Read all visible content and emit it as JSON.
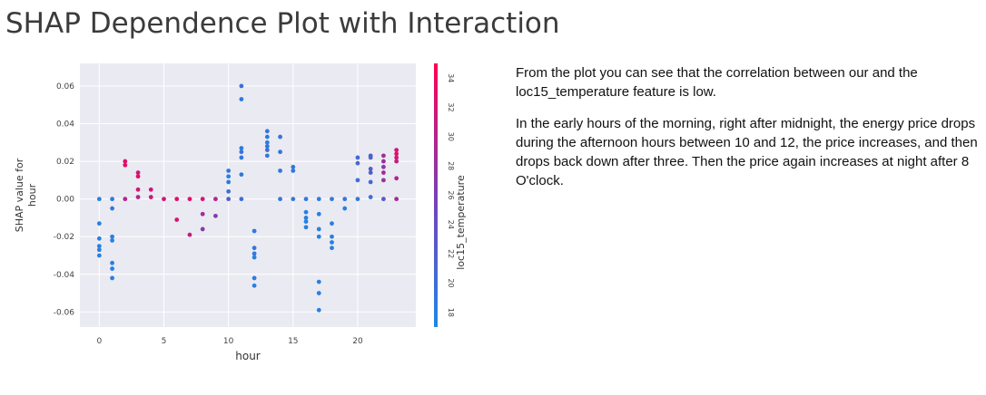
{
  "title": "SHAP Dependence Plot with Interaction",
  "notes": {
    "paragraph_1": "From the plot you can see that the correlation between our and the loc15_temperature feature is low.",
    "paragraph_2": "In the early hours of the morning, right after midnight, the energy price drops during the afternoon hours between 10 and 12, the price increases, and then drops back down after three. Then the price again increases at night after 8 O'clock."
  },
  "chart_data": {
    "type": "scatter",
    "xlabel": "hour",
    "ylabel": "SHAP value for\nhour",
    "xlim": [
      -1.5,
      24.5
    ],
    "ylim": [
      -0.068,
      0.072
    ],
    "xticks": [
      0,
      5,
      10,
      15,
      20
    ],
    "yticks": [
      -0.06,
      -0.04,
      -0.02,
      0.0,
      0.02,
      0.04,
      0.06
    ],
    "ytick_labels": [
      "-0.06",
      "-0.04",
      "-0.02",
      "0.00",
      "0.02",
      "0.04",
      "0.06"
    ],
    "grid": true,
    "colorbar": {
      "label": "loc15_temperature",
      "range": [
        17,
        35
      ],
      "ticks": [
        18,
        20,
        22,
        24,
        26,
        28,
        30,
        32,
        34
      ],
      "low_color": "#1e88e5",
      "high_color": "#ff0052"
    },
    "points": [
      {
        "x": 0,
        "y": 0.0,
        "c": 18
      },
      {
        "x": 0,
        "y": -0.013,
        "c": 18
      },
      {
        "x": 0,
        "y": -0.021,
        "c": 18
      },
      {
        "x": 0,
        "y": -0.025,
        "c": 18
      },
      {
        "x": 0,
        "y": -0.027,
        "c": 18
      },
      {
        "x": 0,
        "y": -0.03,
        "c": 18
      },
      {
        "x": 1,
        "y": 0.0,
        "c": 19
      },
      {
        "x": 1,
        "y": -0.005,
        "c": 19
      },
      {
        "x": 1,
        "y": -0.02,
        "c": 18
      },
      {
        "x": 1,
        "y": -0.022,
        "c": 18
      },
      {
        "x": 1,
        "y": -0.034,
        "c": 18
      },
      {
        "x": 1,
        "y": -0.037,
        "c": 18
      },
      {
        "x": 1,
        "y": -0.042,
        "c": 18
      },
      {
        "x": 2,
        "y": 0.0,
        "c": 30
      },
      {
        "x": 2,
        "y": 0.018,
        "c": 33
      },
      {
        "x": 2,
        "y": 0.02,
        "c": 33
      },
      {
        "x": 3,
        "y": 0.001,
        "c": 30
      },
      {
        "x": 3,
        "y": 0.005,
        "c": 32
      },
      {
        "x": 3,
        "y": 0.012,
        "c": 33
      },
      {
        "x": 3,
        "y": 0.014,
        "c": 32
      },
      {
        "x": 4,
        "y": 0.001,
        "c": 31
      },
      {
        "x": 4,
        "y": 0.005,
        "c": 32
      },
      {
        "x": 5,
        "y": 0.0,
        "c": 32
      },
      {
        "x": 6,
        "y": 0.0,
        "c": 33
      },
      {
        "x": 6,
        "y": -0.011,
        "c": 32
      },
      {
        "x": 7,
        "y": 0.0,
        "c": 33
      },
      {
        "x": 7,
        "y": -0.019,
        "c": 31
      },
      {
        "x": 8,
        "y": 0.0,
        "c": 32
      },
      {
        "x": 8,
        "y": -0.008,
        "c": 29
      },
      {
        "x": 8,
        "y": -0.016,
        "c": 27
      },
      {
        "x": 9,
        "y": 0.0,
        "c": 30
      },
      {
        "x": 9,
        "y": -0.009,
        "c": 27
      },
      {
        "x": 10,
        "y": 0.0,
        "c": 22
      },
      {
        "x": 10,
        "y": 0.004,
        "c": 20
      },
      {
        "x": 10,
        "y": 0.009,
        "c": 19
      },
      {
        "x": 10,
        "y": 0.012,
        "c": 18
      },
      {
        "x": 10,
        "y": 0.015,
        "c": 19
      },
      {
        "x": 11,
        "y": 0.06,
        "c": 20
      },
      {
        "x": 11,
        "y": 0.053,
        "c": 19
      },
      {
        "x": 11,
        "y": 0.027,
        "c": 19
      },
      {
        "x": 11,
        "y": 0.025,
        "c": 19
      },
      {
        "x": 11,
        "y": 0.022,
        "c": 19
      },
      {
        "x": 11,
        "y": 0.013,
        "c": 19
      },
      {
        "x": 11,
        "y": 0.0,
        "c": 20
      },
      {
        "x": 12,
        "y": -0.017,
        "c": 19
      },
      {
        "x": 12,
        "y": -0.026,
        "c": 19
      },
      {
        "x": 12,
        "y": -0.029,
        "c": 19
      },
      {
        "x": 12,
        "y": -0.031,
        "c": 18
      },
      {
        "x": 12,
        "y": -0.042,
        "c": 19
      },
      {
        "x": 12,
        "y": -0.046,
        "c": 18
      },
      {
        "x": 13,
        "y": 0.036,
        "c": 19
      },
      {
        "x": 13,
        "y": 0.033,
        "c": 19
      },
      {
        "x": 13,
        "y": 0.03,
        "c": 18
      },
      {
        "x": 13,
        "y": 0.028,
        "c": 19
      },
      {
        "x": 13,
        "y": 0.026,
        "c": 20
      },
      {
        "x": 13,
        "y": 0.023,
        "c": 19
      },
      {
        "x": 14,
        "y": 0.033,
        "c": 19
      },
      {
        "x": 14,
        "y": 0.025,
        "c": 19
      },
      {
        "x": 14,
        "y": 0.015,
        "c": 19
      },
      {
        "x": 14,
        "y": 0.0,
        "c": 19
      },
      {
        "x": 15,
        "y": 0.017,
        "c": 19
      },
      {
        "x": 15,
        "y": 0.015,
        "c": 19
      },
      {
        "x": 15,
        "y": 0.0,
        "c": 19
      },
      {
        "x": 16,
        "y": 0.0,
        "c": 19
      },
      {
        "x": 16,
        "y": -0.007,
        "c": 18
      },
      {
        "x": 16,
        "y": -0.01,
        "c": 18
      },
      {
        "x": 16,
        "y": -0.012,
        "c": 18
      },
      {
        "x": 16,
        "y": -0.015,
        "c": 18
      },
      {
        "x": 17,
        "y": 0.0,
        "c": 18
      },
      {
        "x": 17,
        "y": -0.008,
        "c": 18
      },
      {
        "x": 17,
        "y": -0.016,
        "c": 18
      },
      {
        "x": 17,
        "y": -0.02,
        "c": 18
      },
      {
        "x": 17,
        "y": -0.044,
        "c": 18
      },
      {
        "x": 17,
        "y": -0.05,
        "c": 18
      },
      {
        "x": 17,
        "y": -0.059,
        "c": 18
      },
      {
        "x": 18,
        "y": 0.0,
        "c": 19
      },
      {
        "x": 18,
        "y": -0.013,
        "c": 18
      },
      {
        "x": 18,
        "y": -0.02,
        "c": 18
      },
      {
        "x": 18,
        "y": -0.023,
        "c": 18
      },
      {
        "x": 18,
        "y": -0.026,
        "c": 18
      },
      {
        "x": 19,
        "y": 0.0,
        "c": 19
      },
      {
        "x": 19,
        "y": -0.005,
        "c": 18
      },
      {
        "x": 20,
        "y": 0.0,
        "c": 19
      },
      {
        "x": 20,
        "y": 0.01,
        "c": 20
      },
      {
        "x": 20,
        "y": 0.019,
        "c": 21
      },
      {
        "x": 20,
        "y": 0.022,
        "c": 21
      },
      {
        "x": 21,
        "y": 0.001,
        "c": 20
      },
      {
        "x": 21,
        "y": 0.009,
        "c": 21
      },
      {
        "x": 21,
        "y": 0.014,
        "c": 22
      },
      {
        "x": 21,
        "y": 0.016,
        "c": 22
      },
      {
        "x": 21,
        "y": 0.022,
        "c": 21
      },
      {
        "x": 21,
        "y": 0.023,
        "c": 22
      },
      {
        "x": 22,
        "y": 0.0,
        "c": 23
      },
      {
        "x": 22,
        "y": 0.01,
        "c": 28
      },
      {
        "x": 22,
        "y": 0.014,
        "c": 29
      },
      {
        "x": 22,
        "y": 0.017,
        "c": 27
      },
      {
        "x": 22,
        "y": 0.02,
        "c": 28
      },
      {
        "x": 22,
        "y": 0.023,
        "c": 29
      },
      {
        "x": 23,
        "y": 0.0,
        "c": 29
      },
      {
        "x": 23,
        "y": 0.011,
        "c": 30
      },
      {
        "x": 23,
        "y": 0.02,
        "c": 31
      },
      {
        "x": 23,
        "y": 0.022,
        "c": 32
      },
      {
        "x": 23,
        "y": 0.024,
        "c": 33
      },
      {
        "x": 23,
        "y": 0.026,
        "c": 32
      }
    ]
  }
}
